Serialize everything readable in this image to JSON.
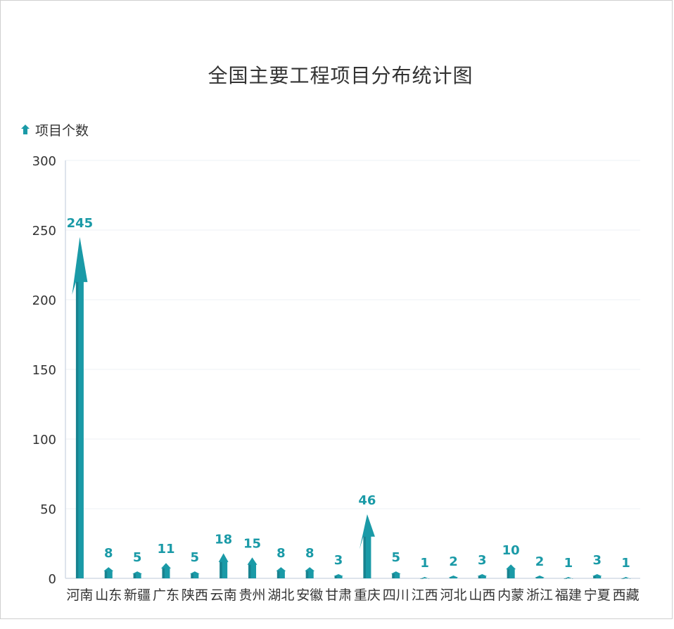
{
  "chart_data": {
    "type": "bar",
    "title": "全国主要工程项目分布统计图",
    "legend": {
      "position": "top-left",
      "entries": [
        "项目个数"
      ]
    },
    "categories": [
      "河南",
      "山东",
      "新疆",
      "广东",
      "陕西",
      "云南",
      "贵州",
      "湖北",
      "安徽",
      "甘肃",
      "重庆",
      "四川",
      "江西",
      "河北",
      "山西",
      "内蒙",
      "浙江",
      "福建",
      "宁夏",
      "西藏"
    ],
    "series": [
      {
        "name": "项目个数",
        "values": [
          245,
          8,
          5,
          11,
          5,
          18,
          15,
          8,
          8,
          3,
          46,
          5,
          1,
          2,
          3,
          10,
          2,
          1,
          3,
          1
        ]
      }
    ],
    "xlabel": "",
    "ylabel": "",
    "ylim": [
      0,
      300
    ],
    "yticks": [
      0,
      50,
      100,
      150,
      200,
      250,
      300
    ],
    "grid": true,
    "colors": {
      "bar": "#1a9aa7",
      "bar_dark": "#17707b",
      "label": "#1a9aa7",
      "text": "#333333",
      "grid": "#eef0f4",
      "axis": "#d4dbe6"
    }
  }
}
